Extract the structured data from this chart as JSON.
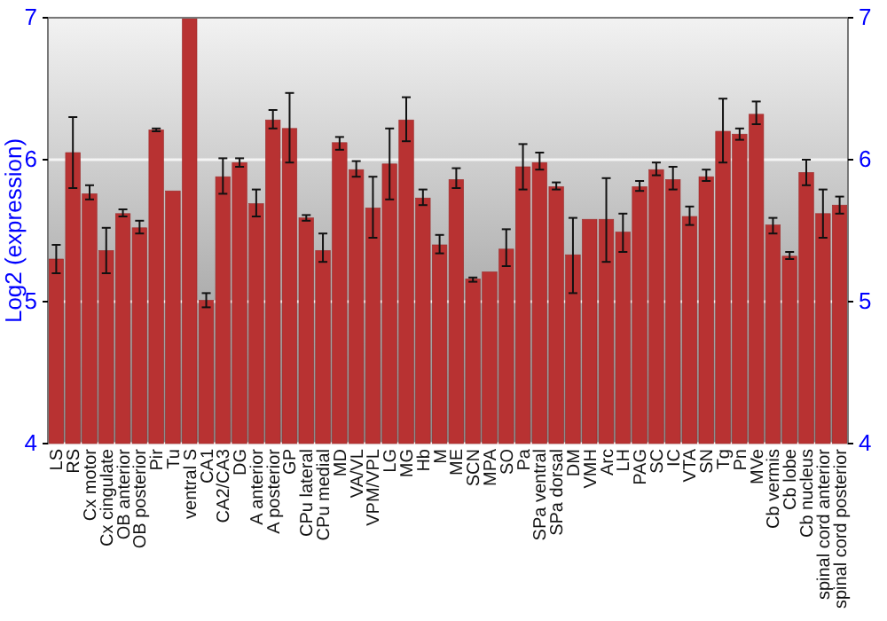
{
  "chart_data": {
    "type": "bar",
    "ylabel": "Log2 (expression)",
    "categories": [
      "LS",
      "RS",
      "Cx motor",
      "Cx cingulate",
      "OB anterior",
      "OB posterior",
      "Pir",
      "Tu",
      "ventral S",
      "CA1",
      "CA2/CA3",
      "DG",
      "A anterior",
      "A posterior",
      "GP",
      "CPu lateral",
      "CPu medial",
      "MD",
      "VA/VL",
      "VPM/VPL",
      "LG",
      "MG",
      "Hb",
      "M",
      "ME",
      "SCN",
      "MPA",
      "SO",
      "Pa",
      "SPa ventral",
      "SPa dorsal",
      "DM",
      "VMH",
      "Arc",
      "LH",
      "PAG",
      "SC",
      "IC",
      "VTA",
      "SN",
      "Tg",
      "Pn",
      "MVe",
      "Cb vermis",
      "Cb lobe",
      "Cb nucleus",
      "spinal cord anterior",
      "spinal cord posterior"
    ],
    "values": [
      5.3,
      6.05,
      5.76,
      5.36,
      5.62,
      5.52,
      6.21,
      5.78,
      7.0,
      5.01,
      5.88,
      5.98,
      5.69,
      6.28,
      6.22,
      5.59,
      5.36,
      6.12,
      5.93,
      5.66,
      5.97,
      6.28,
      5.73,
      5.4,
      5.86,
      5.16,
      5.21,
      5.37,
      5.95,
      5.98,
      5.81,
      5.33,
      5.58,
      5.58,
      5.49,
      5.81,
      5.93,
      5.86,
      5.6,
      5.88,
      6.2,
      6.18,
      6.32,
      5.54,
      5.32,
      5.91,
      5.62,
      5.68
    ],
    "errors": [
      [
        5.2,
        5.4
      ],
      [
        5.8,
        6.3
      ],
      [
        5.72,
        5.82
      ],
      [
        5.2,
        5.52
      ],
      [
        5.6,
        5.65
      ],
      [
        5.48,
        5.57
      ],
      [
        6.2,
        6.22
      ],
      null,
      null,
      [
        4.96,
        5.06
      ],
      [
        5.76,
        6.01
      ],
      [
        5.95,
        6.01
      ],
      [
        5.6,
        5.79
      ],
      [
        6.22,
        6.35
      ],
      [
        5.98,
        6.47
      ],
      [
        5.57,
        5.61
      ],
      [
        5.28,
        5.48
      ],
      [
        6.07,
        6.16
      ],
      [
        5.88,
        5.99
      ],
      [
        5.45,
        5.88
      ],
      [
        5.72,
        6.22
      ],
      [
        6.13,
        6.44
      ],
      [
        5.68,
        5.79
      ],
      [
        5.34,
        5.47
      ],
      [
        5.8,
        5.94
      ],
      [
        5.14,
        5.17
      ],
      null,
      [
        5.25,
        5.51
      ],
      [
        5.79,
        6.11
      ],
      [
        5.93,
        6.05
      ],
      [
        5.79,
        5.84
      ],
      [
        5.06,
        5.59
      ],
      null,
      [
        5.28,
        5.87
      ],
      [
        5.35,
        5.62
      ],
      [
        5.78,
        5.85
      ],
      [
        5.89,
        5.98
      ],
      [
        5.79,
        5.95
      ],
      [
        5.54,
        5.67
      ],
      [
        5.85,
        5.93
      ],
      [
        5.98,
        6.43
      ],
      [
        6.14,
        6.22
      ],
      [
        6.25,
        6.41
      ],
      [
        5.48,
        5.59
      ],
      [
        5.3,
        5.35
      ],
      [
        5.82,
        6.0
      ],
      [
        5.45,
        5.79
      ],
      [
        5.62,
        5.74
      ]
    ],
    "color": "#b83232",
    "ylim": [
      4,
      7
    ],
    "yticks": [
      4,
      5,
      6,
      7
    ],
    "y2lim": [
      4,
      7
    ],
    "y2ticks": [
      4,
      5,
      6,
      7
    ],
    "grid": "y"
  }
}
